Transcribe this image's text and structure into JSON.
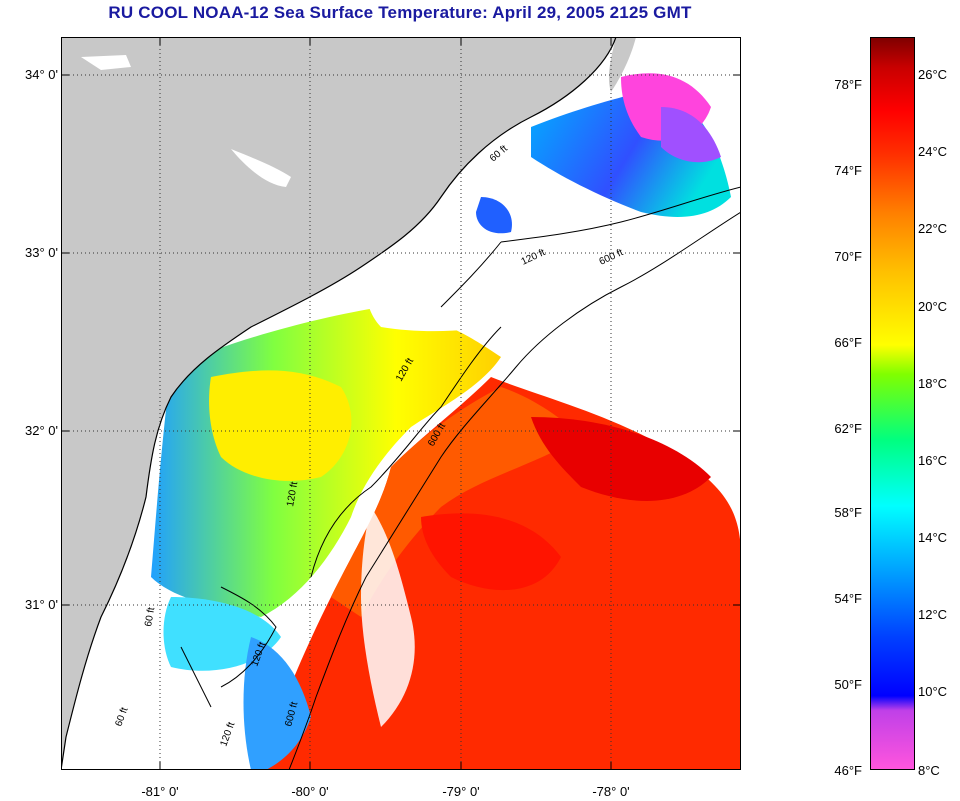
{
  "title": "RU COOL  NOAA-12  Sea Surface Temperature:  April 29, 2005 2125 GMT",
  "lat_labels": [
    "34° 0'",
    "33° 0'",
    "32° 0'",
    "31° 0'"
  ],
  "lon_labels": [
    "-81° 0'",
    "-80° 0'",
    "-79° 0'",
    "-78° 0'"
  ],
  "isobath_labels": [
    "120 ft",
    "600 ft",
    "120 ft",
    "600 ft",
    "120 ft",
    "600 ft",
    "120 ft",
    "60 ft",
    "60 ft",
    "120 ft",
    "60 ft"
  ],
  "colorbar": {
    "fahrenheit": [
      "78°F",
      "74°F",
      "70°F",
      "66°F",
      "62°F",
      "58°F",
      "54°F",
      "50°F",
      "46°F"
    ],
    "celsius": [
      "26°C",
      "24°C",
      "22°C",
      "20°C",
      "18°C",
      "16°C",
      "14°C",
      "12°C",
      "10°C",
      "8°C"
    ]
  },
  "colors": {
    "land": "#c8c8c8",
    "cloud": "#ffffff",
    "title": "#1a1aa0",
    "warm": "#ff2a00",
    "cold": "#ff44dd"
  }
}
